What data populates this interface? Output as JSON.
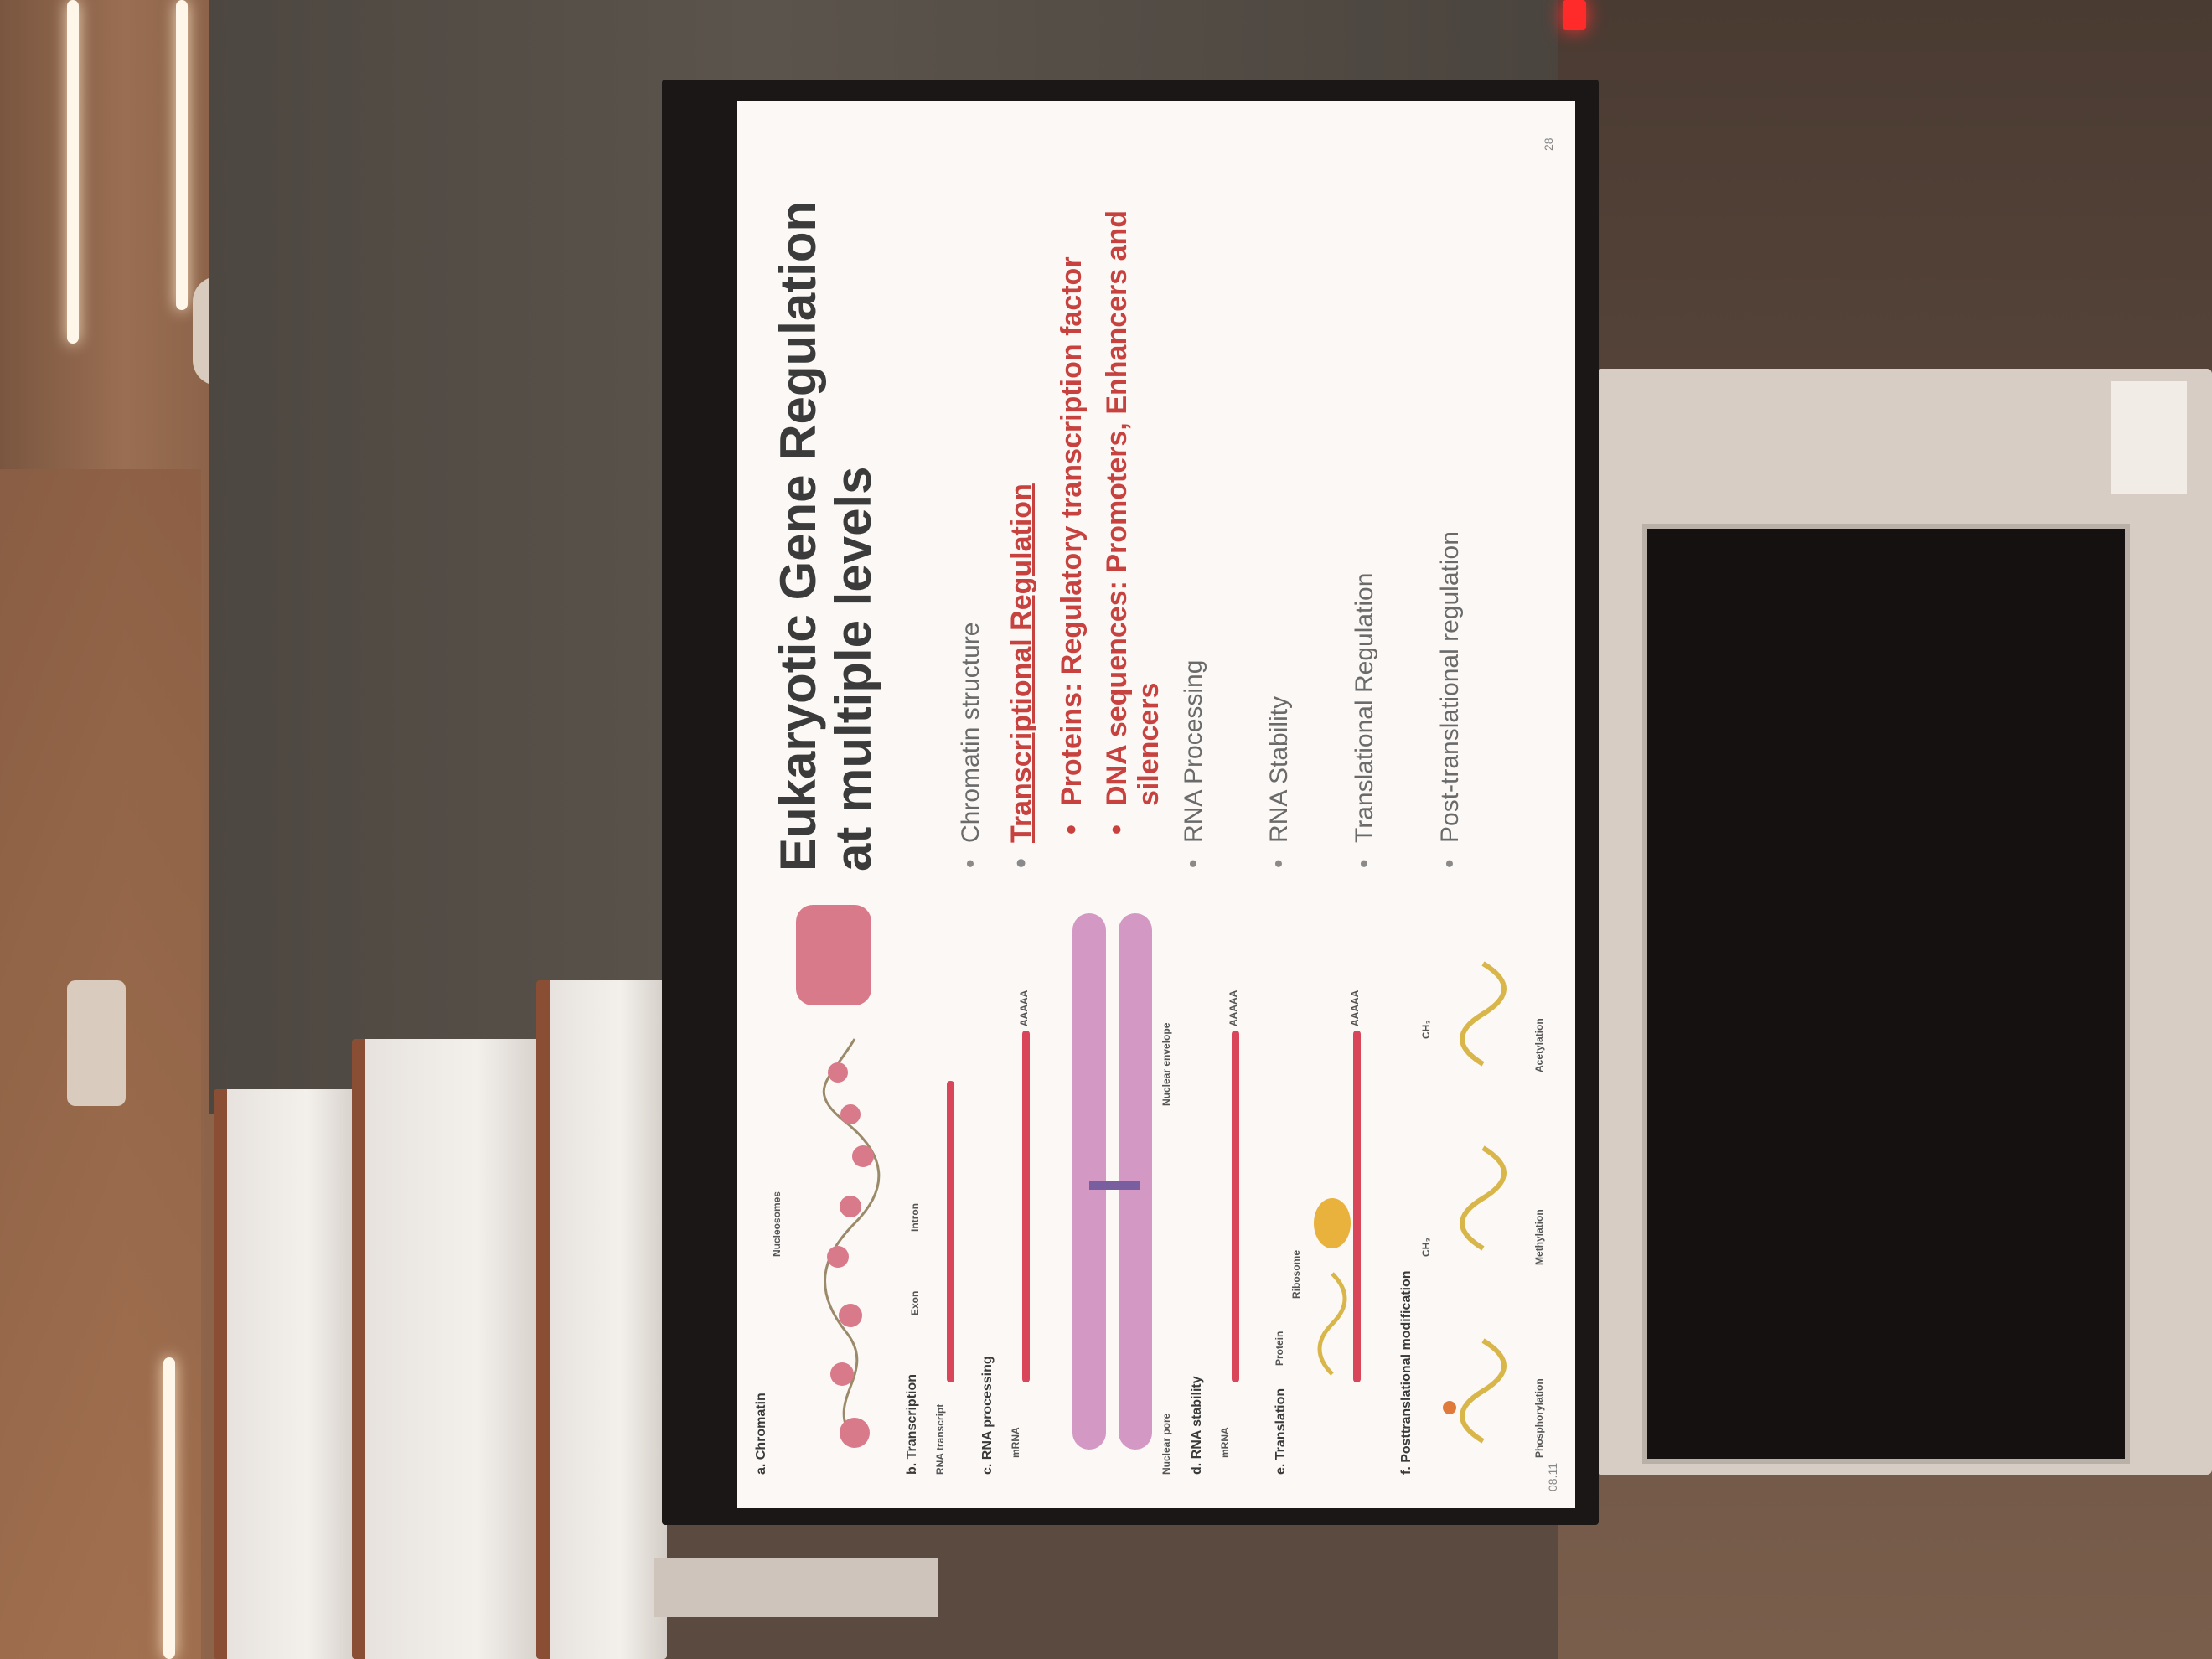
{
  "slide": {
    "title": "Eukaryotic Gene Regulation at multiple levels",
    "bullets": {
      "chromatin": "Chromatin structure",
      "transcriptional": "Transcriptional Regulation",
      "proteins": "Proteins: Regulatory transcription factor",
      "dna": "DNA sequences: Promoters, Enhancers and silencers",
      "rna_processing": "RNA Processing",
      "rna_stability": "RNA Stability",
      "translational": "Translational Regulation",
      "post_translational": "Post-translational regulation"
    },
    "figure": {
      "a": "a. Chromatin",
      "nucleosomes": "Nucleosomes",
      "b": "b. Transcription",
      "rna_transcript": "RNA transcript",
      "exon": "Exon",
      "intron": "Intron",
      "c": "c. RNA processing",
      "mrna_c": "mRNA",
      "aaaaa_c": "AAAAA",
      "nuclear_pore": "Nuclear pore",
      "nuclear_envelope": "Nuclear envelope",
      "d": "d. RNA stability",
      "mrna_d": "mRNA",
      "aaaaa_d": "AAAAA",
      "e": "e. Translation",
      "protein": "Protein",
      "ribosome": "Ribosome",
      "aaaaa_e": "AAAAA",
      "f": "f. Posttranslational modification",
      "phosphorylation": "Phosphorylation",
      "methylation": "Methylation",
      "acetylation": "Acetylation",
      "ch3_methyl": "CH₃",
      "ch3_acetyl": "CH₃"
    },
    "page_number": "28",
    "footer_code": "08.11"
  },
  "colors": {
    "accent_red": "#c7423f",
    "strand_red": "#d9465a",
    "chromatin_pink": "#d97a8a",
    "envelope_magenta": "#b5489a",
    "protein_yellow": "#d9b64a"
  }
}
